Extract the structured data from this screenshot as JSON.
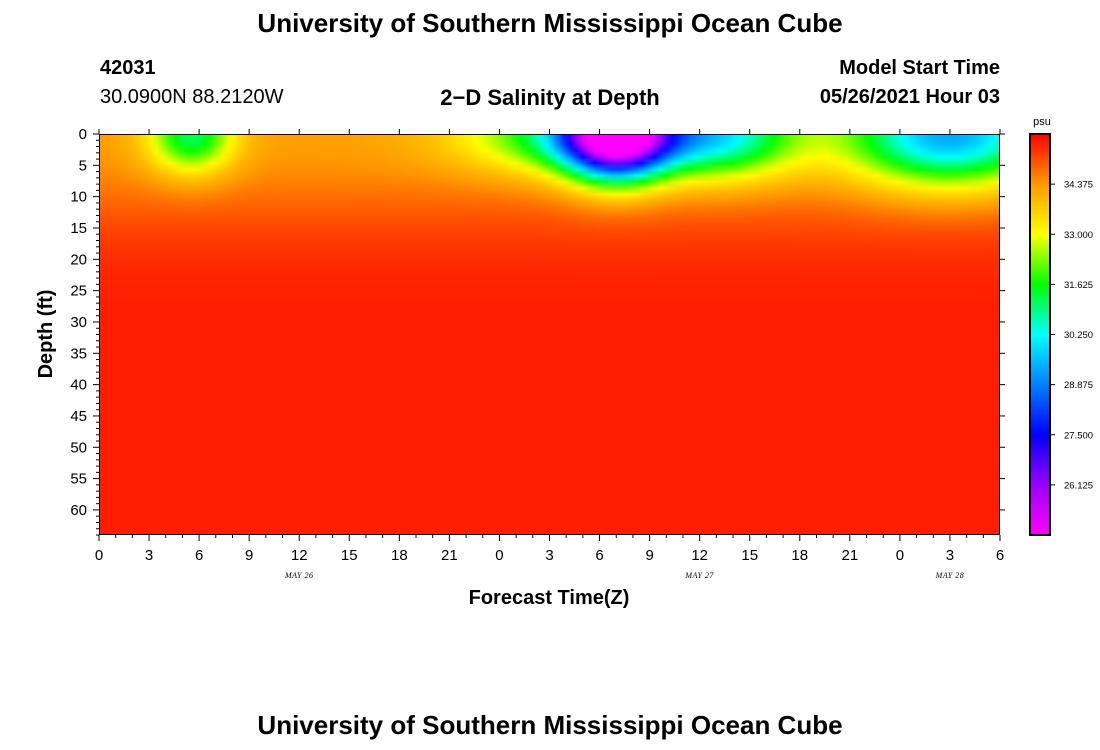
{
  "header": {
    "title": "University of Southern Mississippi Ocean Cube",
    "footer_title": "University of Southern Mississippi Ocean Cube",
    "station_id": "42031",
    "coordinates": "30.0900N  88.2120W",
    "plot_title": "2−D Salinity at Depth",
    "model_start_label": "Model Start Time",
    "model_start_value": "05/26/2021 Hour 03"
  },
  "chart_data": {
    "type": "heatmap",
    "title": "2−D Salinity at Depth",
    "xlabel": "Forecast Time(Z)",
    "ylabel": "Depth (ft)",
    "x_ticks": [
      "0",
      "3",
      "6",
      "9",
      "12",
      "15",
      "18",
      "21",
      "0",
      "3",
      "6",
      "9",
      "12",
      "15",
      "18",
      "21",
      "0",
      "3",
      "6"
    ],
    "x_range_hours": [
      0,
      54
    ],
    "date_labels": [
      {
        "text": "MAY 26",
        "hour": 12
      },
      {
        "text": "MAY 27",
        "hour": 36
      },
      {
        "text": "MAY 28",
        "hour": 51
      }
    ],
    "y_ticks": [
      0,
      5,
      10,
      15,
      20,
      25,
      30,
      35,
      40,
      45,
      50,
      55,
      60
    ],
    "y_range_ft": [
      0,
      64
    ],
    "colorbar": {
      "unit": "psu",
      "min": 24.75,
      "max": 35.75,
      "tick_values": [
        34.375,
        33.0,
        31.625,
        30.25,
        28.875,
        27.5,
        26.125
      ],
      "tick_labels": [
        "34.375",
        "33.000",
        "31.625",
        "30.250",
        "28.875",
        "27.500",
        "26.125"
      ]
    },
    "field": {
      "base_psu": 35.5,
      "shallow_psu": 34.3,
      "shallow_depth_ft": 14,
      "surface_features": [
        {
          "center_hour": 5.5,
          "width_hours": 2.5,
          "psu_drop": 3.2,
          "depth_ft": 6
        },
        {
          "center_hour": 31,
          "width_hours": 3.0,
          "psu_drop": 8.2,
          "depth_ft": 7
        },
        {
          "center_hour": 30,
          "width_hours": 7.0,
          "psu_drop": 4.0,
          "depth_ft": 6
        },
        {
          "center_hour": 37.5,
          "width_hours": 4.5,
          "psu_drop": 3.2,
          "depth_ft": 7
        },
        {
          "center_hour": 51,
          "width_hours": 6.0,
          "psu_drop": 5.0,
          "depth_ft": 8
        }
      ]
    }
  }
}
